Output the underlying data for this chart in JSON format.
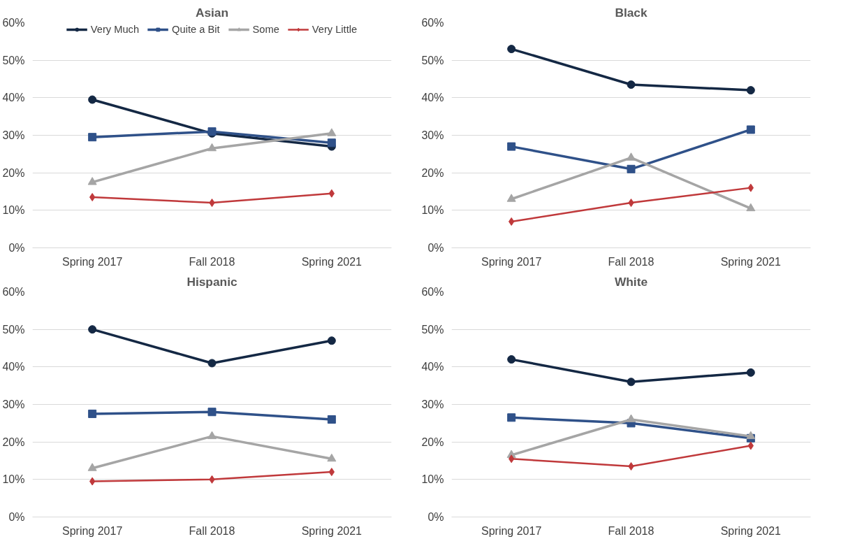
{
  "chart_data": [
    {
      "type": "line",
      "title": "Asian",
      "categories": [
        "Spring 2017",
        "Fall 2018",
        "Spring 2021"
      ],
      "legend": "top",
      "grid": "y",
      "ylim": [
        0,
        60
      ],
      "yticks": [
        {
          "value": 0,
          "label": "0%"
        },
        {
          "value": 10,
          "label": "10%"
        },
        {
          "value": 20,
          "label": "20%"
        },
        {
          "value": 30,
          "label": "30%"
        },
        {
          "value": 40,
          "label": "40%"
        },
        {
          "value": 50,
          "label": "50%"
        },
        {
          "value": 60,
          "label": "60%"
        }
      ],
      "series": [
        {
          "name": "Very Much",
          "color": "#142844",
          "marker": "circle",
          "values": [
            39.5,
            30.5,
            27
          ]
        },
        {
          "name": "Quite a Bit",
          "color": "#2f5189",
          "marker": "square",
          "values": [
            29.5,
            31,
            28
          ]
        },
        {
          "name": "Some",
          "color": "#a5a5a5",
          "marker": "triangle",
          "values": [
            17.5,
            26.5,
            30.5
          ]
        },
        {
          "name": "Very Little",
          "color": "#c0393b",
          "marker": "diamond",
          "values": [
            13.5,
            12,
            14.5
          ]
        }
      ]
    },
    {
      "type": "line",
      "title": "Black",
      "categories": [
        "Spring 2017",
        "Fall 2018",
        "Spring 2021"
      ],
      "grid": "y",
      "ylim": [
        0,
        60
      ],
      "yticks": [
        {
          "value": 0,
          "label": "0%"
        },
        {
          "value": 10,
          "label": "10%"
        },
        {
          "value": 20,
          "label": "20%"
        },
        {
          "value": 30,
          "label": "30%"
        },
        {
          "value": 40,
          "label": "40%"
        },
        {
          "value": 50,
          "label": "50%"
        },
        {
          "value": 60,
          "label": "60%"
        }
      ],
      "series": [
        {
          "color": "#142844",
          "marker": "circle",
          "values": [
            53,
            43.5,
            42
          ]
        },
        {
          "color": "#2f5189",
          "marker": "square",
          "values": [
            27,
            21,
            31.5
          ]
        },
        {
          "color": "#a5a5a5",
          "marker": "triangle",
          "values": [
            13,
            24,
            10.5
          ]
        },
        {
          "color": "#c0393b",
          "marker": "diamond",
          "values": [
            7,
            12,
            16
          ]
        }
      ]
    },
    {
      "type": "line",
      "title": "Hispanic",
      "categories": [
        "Spring 2017",
        "Fall 2018",
        "Spring 2021"
      ],
      "grid": "y",
      "ylim": [
        0,
        60
      ],
      "yticks": [
        {
          "value": 0,
          "label": "0%"
        },
        {
          "value": 10,
          "label": "10%"
        },
        {
          "value": 20,
          "label": "20%"
        },
        {
          "value": 30,
          "label": "30%"
        },
        {
          "value": 40,
          "label": "40%"
        },
        {
          "value": 50,
          "label": "50%"
        },
        {
          "value": 60,
          "label": "60%"
        }
      ],
      "series": [
        {
          "color": "#142844",
          "marker": "circle",
          "values": [
            50,
            41,
            47
          ]
        },
        {
          "color": "#2f5189",
          "marker": "square",
          "values": [
            27.5,
            28,
            26
          ]
        },
        {
          "color": "#a5a5a5",
          "marker": "triangle",
          "values": [
            13,
            21.5,
            15.5
          ]
        },
        {
          "color": "#c0393b",
          "marker": "diamond",
          "values": [
            9.5,
            10,
            12
          ]
        }
      ]
    },
    {
      "type": "line",
      "title": "White",
      "categories": [
        "Spring 2017",
        "Fall 2018",
        "Spring 2021"
      ],
      "grid": "y",
      "ylim": [
        0,
        60
      ],
      "yticks": [
        {
          "value": 0,
          "label": "0%"
        },
        {
          "value": 10,
          "label": "10%"
        },
        {
          "value": 20,
          "label": "20%"
        },
        {
          "value": 30,
          "label": "30%"
        },
        {
          "value": 40,
          "label": "40%"
        },
        {
          "value": 50,
          "label": "50%"
        },
        {
          "value": 60,
          "label": "60%"
        }
      ],
      "series": [
        {
          "color": "#142844",
          "marker": "circle",
          "values": [
            42,
            36,
            38.5
          ]
        },
        {
          "color": "#2f5189",
          "marker": "square",
          "values": [
            26.5,
            25,
            21
          ]
        },
        {
          "color": "#a5a5a5",
          "marker": "triangle",
          "values": [
            16.5,
            26,
            21.5
          ]
        },
        {
          "color": "#c0393b",
          "marker": "diamond",
          "values": [
            15.5,
            13.5,
            19
          ]
        }
      ]
    }
  ]
}
